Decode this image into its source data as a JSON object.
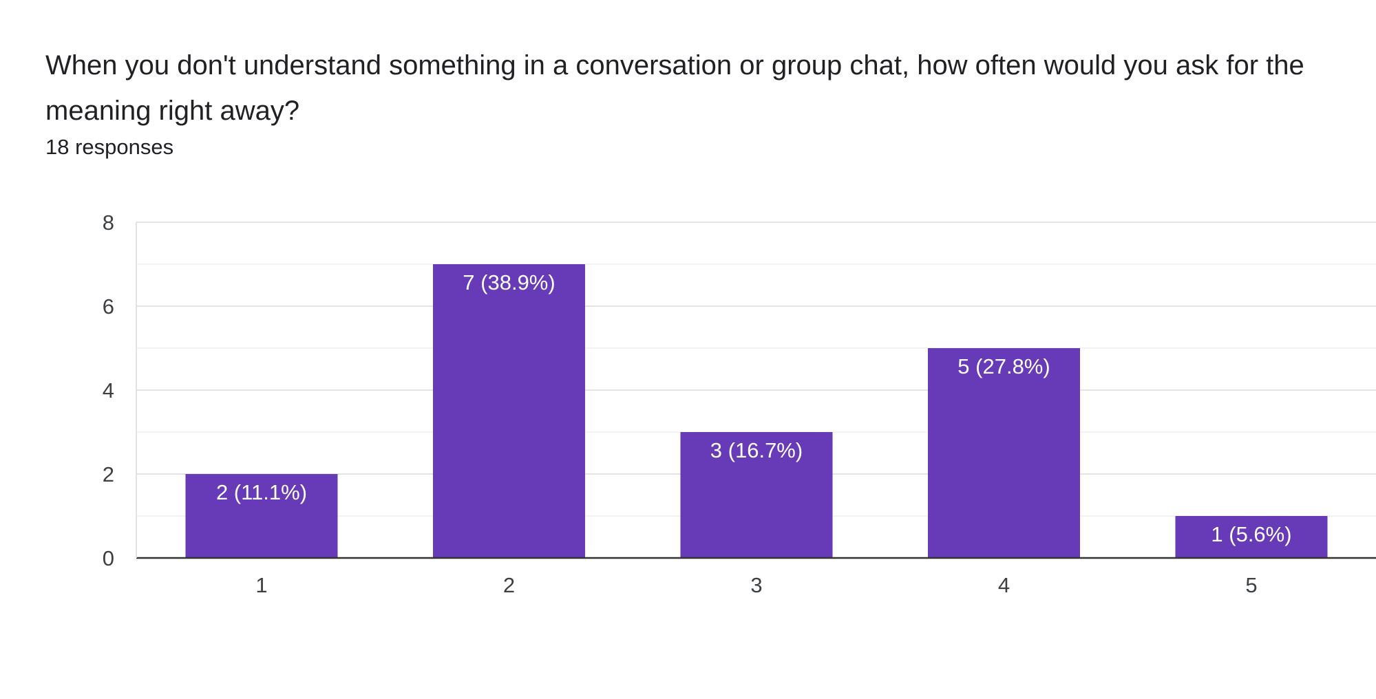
{
  "question": {
    "title": "When you don't understand something in a conversation or group chat, how often would you ask for the meaning right away?",
    "responses": "18 responses"
  },
  "colors": {
    "bar": "#673ab7",
    "gridline": "#e8e8e8",
    "axis": "#333333",
    "text": "#202124"
  },
  "chart_data": {
    "type": "bar",
    "title": "When you don't understand something in a conversation or group chat, how often would you ask for the meaning right away?",
    "subtitle": "18 responses",
    "categories": [
      "1",
      "2",
      "3",
      "4",
      "5"
    ],
    "values": [
      2,
      7,
      3,
      5,
      1
    ],
    "data_labels": [
      "2 (11.1%)",
      "7 (38.9%)",
      "3 (16.7%)",
      "5 (27.8%)",
      "1 (5.6%)"
    ],
    "ylim": [
      0,
      8
    ],
    "yticks": [
      0,
      2,
      4,
      6,
      8
    ],
    "grid": true,
    "legend": "none",
    "xlabel": "",
    "ylabel": ""
  }
}
